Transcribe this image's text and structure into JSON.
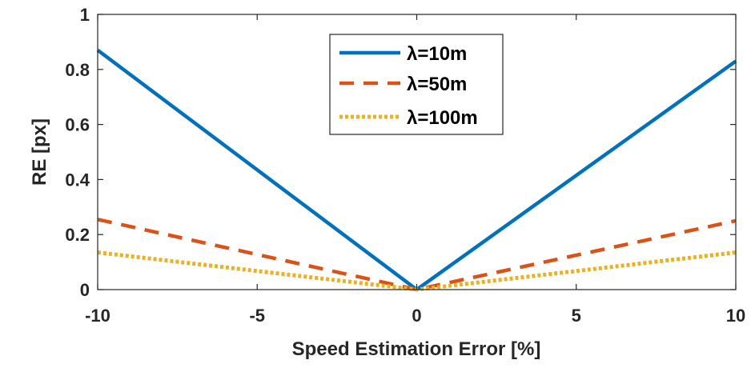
{
  "chart_data": {
    "type": "line",
    "title": "",
    "xlabel": "Speed Estimation Error [%]",
    "ylabel": "RE [px]",
    "xlim": [
      -10,
      10
    ],
    "ylim": [
      0,
      1
    ],
    "xticks": [
      -10,
      -5,
      0,
      5,
      10
    ],
    "xtick_labels": [
      "-10",
      "-5",
      "0",
      "5",
      "10"
    ],
    "yticks": [
      0,
      0.2,
      0.4,
      0.6,
      0.8,
      1
    ],
    "ytick_labels": [
      "0",
      "0.2",
      "0.4",
      "0.6",
      "0.8",
      "1"
    ],
    "grid": false,
    "legend_position": "top-center",
    "series": [
      {
        "name": "λ=10m",
        "line_style": "solid",
        "color": "#0072BD",
        "x": [
          -10,
          0,
          10
        ],
        "y": [
          0.87,
          0.0,
          0.83
        ]
      },
      {
        "name": "λ=50m",
        "line_style": "dashed",
        "color": "#D95319",
        "x": [
          -10,
          0,
          10
        ],
        "y": [
          0.255,
          0.0,
          0.25
        ]
      },
      {
        "name": "λ=100m",
        "line_style": "dotted",
        "color": "#EDB120",
        "x": [
          -10,
          0,
          10
        ],
        "y": [
          0.135,
          0.0,
          0.135
        ]
      }
    ]
  }
}
